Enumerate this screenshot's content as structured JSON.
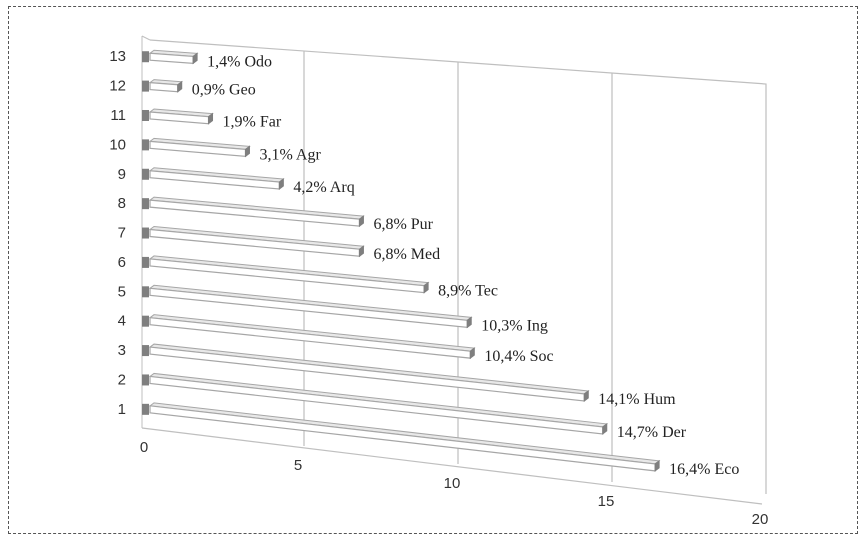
{
  "chart_data": {
    "type": "bar",
    "orientation": "horizontal",
    "style": "3d",
    "categories": [
      "1",
      "2",
      "3",
      "4",
      "5",
      "6",
      "7",
      "8",
      "9",
      "10",
      "11",
      "12",
      "13"
    ],
    "values": [
      16.4,
      14.7,
      14.1,
      10.4,
      10.3,
      8.9,
      6.8,
      6.8,
      4.2,
      3.1,
      1.9,
      0.9,
      1.4
    ],
    "data_labels": [
      "16,4% Eco",
      "14,7% Der",
      "14,1% Hum",
      "10,4% Soc",
      "10,3% Ing",
      "8,9% Tec",
      "6,8% Med",
      "6,8% Pur",
      "4,2% Arq",
      "3,1% Agr",
      "1,9% Far",
      "0,9% Geo",
      "1,4% Odo"
    ],
    "x_ticks": [
      "0",
      "5",
      "10",
      "15",
      "20"
    ],
    "xlim": [
      0,
      20
    ],
    "grid": true,
    "legend": "none",
    "colors": {
      "bar_fill": "#ffffff",
      "bar_edge": "#a6a6a6",
      "bar_side": "#7f7f7f",
      "grid": "#bfbfbf",
      "text": "#222222"
    }
  }
}
